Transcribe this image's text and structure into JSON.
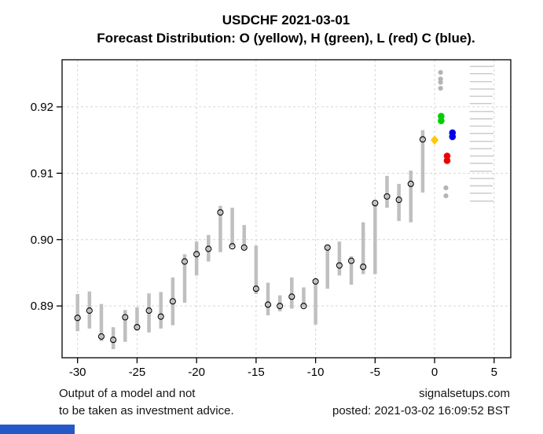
{
  "title": "USDCHF 2021-03-01",
  "subtitle": "Forecast Distribution: O (yellow), H (green), L (red) C (blue).",
  "footer": {
    "disclaimer_line1": "Output of a model and not",
    "disclaimer_line2": "to be taken as investment advice.",
    "site": "signalsetups.com",
    "posted": "posted: 2021-03-02 16:09:52 BST"
  },
  "colors": {
    "bar_gray": "#bfbfbf",
    "close_circle_stroke": "#000000",
    "open_yellow": "#ffc800",
    "high_green": "#00d000",
    "low_red": "#ee0000",
    "close_blue": "#0000e8",
    "outlier_gray": "#b4b4b4",
    "grid_gray": "#d6d6d6",
    "rug_gray": "#c8c8c8",
    "axis_black": "#000000",
    "bottom_bar_blue": "#2659c8"
  },
  "chart_data": {
    "type": "scatter",
    "title": "USDCHF 2021-03-01",
    "subtitle": "Forecast Distribution: O (yellow), H (green), L (red) C (blue).",
    "xlabel": "",
    "ylabel": "",
    "xlim": [
      -31.3,
      6.4
    ],
    "ylim": [
      0.8822,
      0.9271
    ],
    "grid": true,
    "x_ticks": [
      -30,
      -25,
      -20,
      -15,
      -10,
      -5,
      0,
      5
    ],
    "x_tick_labels": [
      "-30",
      "-25",
      "-20",
      "-15",
      "-10",
      "-5",
      "0",
      "5"
    ],
    "y_ticks": [
      0.89,
      0.9,
      0.91,
      0.92
    ],
    "y_tick_labels": [
      "0.89",
      "0.90",
      "0.91",
      "0.92"
    ],
    "history_bars": [
      {
        "x": -30,
        "high": 0.8918,
        "low": 0.8862,
        "close": 0.8882
      },
      {
        "x": -29,
        "high": 0.8922,
        "low": 0.8866,
        "close": 0.8893
      },
      {
        "x": -28,
        "high": 0.8903,
        "low": 0.8847,
        "close": 0.8854
      },
      {
        "x": -27,
        "high": 0.8868,
        "low": 0.8835,
        "close": 0.8849
      },
      {
        "x": -26,
        "high": 0.8894,
        "low": 0.8846,
        "close": 0.8883
      },
      {
        "x": -25,
        "high": 0.8898,
        "low": 0.8863,
        "close": 0.8868
      },
      {
        "x": -24,
        "high": 0.8919,
        "low": 0.886,
        "close": 0.8893
      },
      {
        "x": -23,
        "high": 0.8921,
        "low": 0.8866,
        "close": 0.8884
      },
      {
        "x": -22,
        "high": 0.8943,
        "low": 0.8871,
        "close": 0.8907
      },
      {
        "x": -21,
        "high": 0.8978,
        "low": 0.8905,
        "close": 0.8967
      },
      {
        "x": -20,
        "high": 0.8997,
        "low": 0.8946,
        "close": 0.8978
      },
      {
        "x": -19,
        "high": 0.9007,
        "low": 0.8967,
        "close": 0.8986
      },
      {
        "x": -18,
        "high": 0.9051,
        "low": 0.8981,
        "close": 0.9041
      },
      {
        "x": -17,
        "high": 0.9048,
        "low": 0.8989,
        "close": 0.899
      },
      {
        "x": -16,
        "high": 0.9022,
        "low": 0.8985,
        "close": 0.8988
      },
      {
        "x": -15,
        "high": 0.8991,
        "low": 0.8918,
        "close": 0.8926
      },
      {
        "x": -14,
        "high": 0.8935,
        "low": 0.8886,
        "close": 0.8902
      },
      {
        "x": -13,
        "high": 0.8916,
        "low": 0.8892,
        "close": 0.89
      },
      {
        "x": -12,
        "high": 0.8943,
        "low": 0.8896,
        "close": 0.8914
      },
      {
        "x": -11,
        "high": 0.8928,
        "low": 0.8898,
        "close": 0.89
      },
      {
        "x": -10,
        "high": 0.894,
        "low": 0.8872,
        "close": 0.8937
      },
      {
        "x": -9,
        "high": 0.8992,
        "low": 0.8926,
        "close": 0.8988
      },
      {
        "x": -8,
        "high": 0.8997,
        "low": 0.8946,
        "close": 0.8961
      },
      {
        "x": -7,
        "high": 0.8975,
        "low": 0.8932,
        "close": 0.8968
      },
      {
        "x": -6,
        "high": 0.9026,
        "low": 0.8948,
        "close": 0.8959
      },
      {
        "x": -5,
        "high": 0.9057,
        "low": 0.8948,
        "close": 0.9055
      },
      {
        "x": -4,
        "high": 0.9096,
        "low": 0.9048,
        "close": 0.9065
      },
      {
        "x": -3,
        "high": 0.9084,
        "low": 0.9028,
        "close": 0.906
      },
      {
        "x": -2,
        "high": 0.9104,
        "low": 0.9026,
        "close": 0.9084
      },
      {
        "x": -1,
        "high": 0.9165,
        "low": 0.9071,
        "close": 0.9151
      }
    ],
    "forecast_markers": [
      {
        "name": "open",
        "shape": "diamond",
        "color_key": "open_yellow",
        "x": 0.0,
        "values": [
          0.915
        ]
      },
      {
        "name": "high",
        "shape": "circle",
        "color_key": "high_green",
        "x": 0.55,
        "values": [
          0.9186,
          0.9179
        ]
      },
      {
        "name": "close",
        "shape": "circle",
        "color_key": "close_blue",
        "x": 1.5,
        "values": [
          0.9161,
          0.9155
        ]
      },
      {
        "name": "low",
        "shape": "circle",
        "color_key": "low_red",
        "x": 1.05,
        "values": [
          0.9126,
          0.9119
        ]
      },
      {
        "name": "outliers-above",
        "shape": "circle",
        "color_key": "outlier_gray",
        "x": 0.5,
        "values": [
          0.9252,
          0.9242,
          0.9237,
          0.9228
        ]
      },
      {
        "name": "outliers-below",
        "shape": "circle",
        "color_key": "outlier_gray",
        "x": 0.95,
        "values": [
          0.9078,
          0.9066
        ]
      }
    ],
    "right_rug": {
      "x_start": 2.95,
      "x_end": 4.95,
      "levels": [
        0.9261,
        0.925,
        0.9238,
        0.9227,
        0.9216,
        0.9205,
        0.9193,
        0.9182,
        0.9171,
        0.916,
        0.9148,
        0.9137,
        0.9126,
        0.9115,
        0.9103,
        0.9092,
        0.9081,
        0.907,
        0.9058
      ]
    },
    "legend_position": "none"
  }
}
